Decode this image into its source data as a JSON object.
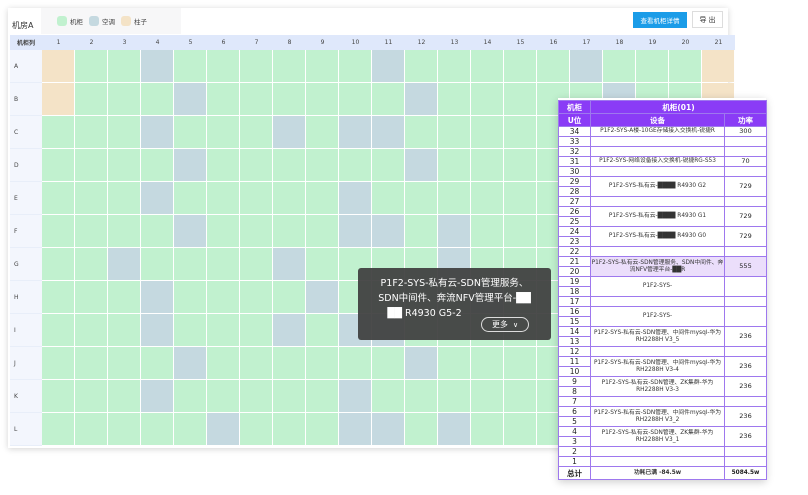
{
  "room": {
    "title": "机房A",
    "legend": [
      {
        "label": "机柜",
        "color": "#c1f1cf"
      },
      {
        "label": "空调",
        "color": "#c5d9e0"
      },
      {
        "label": "柱子",
        "color": "#f4e3c7"
      }
    ],
    "detail_button": "查看机柜详情",
    "export_button": "导 出",
    "corner_label": "机柜列",
    "columns": [
      "1",
      "2",
      "3",
      "4",
      "5",
      "6",
      "7",
      "8",
      "9",
      "10",
      "11",
      "12",
      "13",
      "14",
      "15",
      "16",
      "17",
      "18",
      "19",
      "20",
      "21"
    ],
    "rows": [
      {
        "label": "A",
        "pillar": [
          1,
          21
        ],
        "ac": [
          4,
          11,
          17
        ]
      },
      {
        "label": "B",
        "pillar": [
          1,
          21
        ],
        "ac": [
          5,
          12,
          18
        ]
      },
      {
        "label": "C",
        "pillar": [],
        "ac": [
          4,
          8,
          10,
          11
        ]
      },
      {
        "label": "D",
        "pillar": [],
        "ac": [
          5,
          12
        ]
      },
      {
        "label": "E",
        "pillar": [],
        "ac": [
          4,
          10
        ]
      },
      {
        "label": "F",
        "pillar": [],
        "ac": [
          5,
          10,
          11,
          13
        ]
      },
      {
        "label": "G",
        "pillar": [],
        "ac": [
          3,
          8,
          13
        ]
      },
      {
        "label": "H",
        "pillar": [],
        "ac": [
          4,
          9,
          14
        ]
      },
      {
        "label": "I",
        "pillar": [],
        "ac": [
          4,
          8,
          10,
          11
        ]
      },
      {
        "label": "J",
        "pillar": [],
        "ac": [
          5,
          12
        ]
      },
      {
        "label": "K",
        "pillar": [],
        "ac": [
          4,
          10
        ]
      },
      {
        "label": "L",
        "pillar": [],
        "ac": [
          6,
          10,
          11,
          13
        ]
      }
    ]
  },
  "cabinet": {
    "header_cabinet": "机柜",
    "cabinet_name": "机柜(01)",
    "header_u": "U位",
    "header_device": "设备",
    "header_power": "功率",
    "total_units": 34,
    "devices": [
      {
        "top": 34,
        "bottom": 34,
        "name": "P1F2-SYS-A楼-10GE存储接入交换机-锐捷R",
        "power": "300"
      },
      {
        "top": 31,
        "bottom": 31,
        "name": "P1F2-SYS-网络设备接入交换机-锐捷RG-S53",
        "power": "70"
      },
      {
        "top": 29,
        "bottom": 28,
        "name": "P1F2-SYS-私有云-████ R4930 G2",
        "power": "729"
      },
      {
        "top": 26,
        "bottom": 25,
        "name": "P1F2-SYS-私有云-████ R4930 G1",
        "power": "729"
      },
      {
        "top": 24,
        "bottom": 23,
        "name": "P1F2-SYS-私有云-████ R4930 G0",
        "power": "729"
      },
      {
        "top": 21,
        "bottom": 20,
        "name": "P1F2-SYS-私有云-SDN管理服务、SDN中间件、奔流NFV管理平台-██R",
        "power": "555",
        "highlight": true
      },
      {
        "top": 19,
        "bottom": 18,
        "name": "P1F2-SYS-",
        "power": ""
      },
      {
        "top": 16,
        "bottom": 15,
        "name": "P1F2-SYS-",
        "power": ""
      },
      {
        "top": 14,
        "bottom": 13,
        "name": "P1F2-SYS-私有云-SDN管理、中间件mysql-华为RH2288H V3_5",
        "power": "236"
      },
      {
        "top": 11,
        "bottom": 10,
        "name": "P1F2-SYS-私有云-SDN管理、中间件mysql-华为RH2288H V3-4",
        "power": "236"
      },
      {
        "top": 9,
        "bottom": 8,
        "name": "P1F2-SYS-私有云-SDN管理、ZK集群-华为RH2288H V3-3",
        "power": "236"
      },
      {
        "top": 6,
        "bottom": 5,
        "name": "P1F2-SYS-私有云-SDN管理、中间件mysql-华为RH2288H V3_2",
        "power": "236"
      },
      {
        "top": 4,
        "bottom": 3,
        "name": "P1F2-SYS-私有云-SDN管理、ZK集群-华为RH2288H V3_1",
        "power": "236"
      }
    ],
    "total_label": "总计",
    "total_note": "功耗已满 -84.5w",
    "total_power": "5084.5w"
  },
  "tooltip": {
    "lines": [
      "P1F2-SYS-私有云-SDN管理服务、",
      "SDN中间件、奔流NFV管理平台-██",
      "██ R4930 G5-2"
    ],
    "more_label": "更多",
    "more_icon": "chevron-down-icon"
  }
}
